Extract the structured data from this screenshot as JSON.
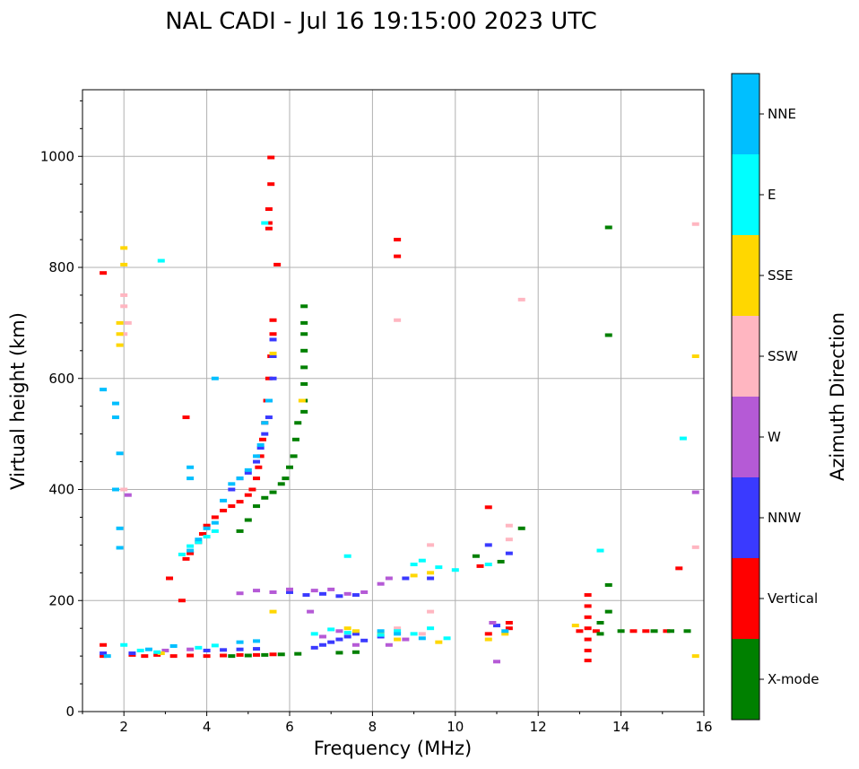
{
  "chart_data": {
    "type": "scatter",
    "title": "NAL CADI - Jul 16 19:15:00 2023 UTC",
    "xlabel": "Frequency (MHz)",
    "ylabel": "Virtual height (km)",
    "xlim": [
      1,
      16
    ],
    "ylim": [
      0,
      1120
    ],
    "xticks": [
      2,
      4,
      6,
      8,
      10,
      12,
      14,
      16
    ],
    "yticks": [
      0,
      200,
      400,
      600,
      800,
      1000
    ],
    "grid": true,
    "colorbar": {
      "label": "Azimuth Direction",
      "categories": [
        {
          "name": "X-mode",
          "color": "#008000"
        },
        {
          "name": "Vertical",
          "color": "#ff0000"
        },
        {
          "name": "NNW",
          "color": "#3a3aff"
        },
        {
          "name": "W",
          "color": "#b55ad6"
        },
        {
          "name": "SSW",
          "color": "#ffb6c1"
        },
        {
          "name": "SSE",
          "color": "#ffd700"
        },
        {
          "name": "E",
          "color": "#00ffff"
        },
        {
          "name": "NNE",
          "color": "#00bfff"
        }
      ]
    },
    "series": [
      {
        "name": "Vertical",
        "points": [
          [
            1.5,
            100
          ],
          [
            1.5,
            120
          ],
          [
            2.2,
            102
          ],
          [
            2.5,
            100
          ],
          [
            2.8,
            102
          ],
          [
            3.2,
            100
          ],
          [
            3.6,
            101
          ],
          [
            4.0,
            100
          ],
          [
            4.4,
            101
          ],
          [
            4.8,
            102
          ],
          [
            5.2,
            102
          ],
          [
            5.6,
            103
          ],
          [
            3.5,
            275
          ],
          [
            3.6,
            285
          ],
          [
            3.8,
            305
          ],
          [
            3.9,
            320
          ],
          [
            4.0,
            335
          ],
          [
            4.2,
            350
          ],
          [
            4.4,
            362
          ],
          [
            4.6,
            370
          ],
          [
            4.8,
            378
          ],
          [
            5.0,
            390
          ],
          [
            5.1,
            400
          ],
          [
            5.2,
            420
          ],
          [
            5.25,
            440
          ],
          [
            5.3,
            460
          ],
          [
            5.35,
            490
          ],
          [
            5.4,
            520
          ],
          [
            5.45,
            560
          ],
          [
            5.5,
            600
          ],
          [
            5.55,
            640
          ],
          [
            5.6,
            680
          ],
          [
            5.6,
            705
          ],
          [
            5.5,
            870
          ],
          [
            5.5,
            880
          ],
          [
            5.55,
            950
          ],
          [
            5.55,
            998
          ],
          [
            5.5,
            905
          ],
          [
            5.7,
            805
          ],
          [
            1.5,
            790
          ],
          [
            3.5,
            530
          ],
          [
            3.4,
            200
          ],
          [
            3.1,
            240
          ],
          [
            8.6,
            850
          ],
          [
            8.6,
            820
          ],
          [
            10.8,
            368
          ],
          [
            10.6,
            262
          ],
          [
            10.8,
            140
          ],
          [
            11.3,
            150
          ],
          [
            11.3,
            160
          ],
          [
            13.2,
            210
          ],
          [
            13.2,
            190
          ],
          [
            13.2,
            170
          ],
          [
            13.2,
            150
          ],
          [
            13.2,
            130
          ],
          [
            13.2,
            110
          ],
          [
            13.2,
            92
          ],
          [
            13.0,
            145
          ],
          [
            13.4,
            145
          ],
          [
            14.3,
            145
          ],
          [
            14.6,
            145
          ],
          [
            15.1,
            145
          ],
          [
            15.4,
            258
          ]
        ]
      },
      {
        "name": "X-mode",
        "points": [
          [
            4.6,
            100
          ],
          [
            5.0,
            101
          ],
          [
            5.4,
            102
          ],
          [
            5.8,
            103
          ],
          [
            6.2,
            104
          ],
          [
            7.2,
            106
          ],
          [
            7.6,
            107
          ],
          [
            4.8,
            325
          ],
          [
            5.0,
            345
          ],
          [
            5.2,
            370
          ],
          [
            5.4,
            385
          ],
          [
            5.6,
            395
          ],
          [
            5.8,
            410
          ],
          [
            5.9,
            420
          ],
          [
            6.0,
            440
          ],
          [
            6.1,
            460
          ],
          [
            6.15,
            490
          ],
          [
            6.2,
            520
          ],
          [
            6.35,
            540
          ],
          [
            6.35,
            560
          ],
          [
            6.35,
            590
          ],
          [
            6.35,
            620
          ],
          [
            6.35,
            650
          ],
          [
            6.35,
            680
          ],
          [
            6.35,
            700
          ],
          [
            6.35,
            730
          ],
          [
            10.5,
            280
          ],
          [
            11.1,
            270
          ],
          [
            11.6,
            330
          ],
          [
            13.5,
            160
          ],
          [
            13.5,
            140
          ],
          [
            13.7,
            228
          ],
          [
            13.7,
            180
          ],
          [
            13.7,
            678
          ],
          [
            13.7,
            872
          ],
          [
            14.0,
            145
          ],
          [
            14.8,
            145
          ],
          [
            15.2,
            145
          ],
          [
            15.6,
            145
          ]
        ]
      },
      {
        "name": "NNW",
        "points": [
          [
            1.5,
            105
          ],
          [
            2.2,
            105
          ],
          [
            4.0,
            110
          ],
          [
            4.4,
            111
          ],
          [
            4.8,
            112
          ],
          [
            5.2,
            113
          ],
          [
            4.6,
            400
          ],
          [
            4.8,
            420
          ],
          [
            5.0,
            430
          ],
          [
            5.2,
            450
          ],
          [
            5.3,
            475
          ],
          [
            5.4,
            500
          ],
          [
            5.5,
            530
          ],
          [
            5.5,
            560
          ],
          [
            5.6,
            600
          ],
          [
            5.6,
            640
          ],
          [
            5.6,
            670
          ],
          [
            6.0,
            215
          ],
          [
            6.4,
            210
          ],
          [
            6.8,
            212
          ],
          [
            7.2,
            208
          ],
          [
            7.6,
            210
          ],
          [
            6.6,
            115
          ],
          [
            6.8,
            120
          ],
          [
            7.0,
            125
          ],
          [
            7.2,
            130
          ],
          [
            7.4,
            135
          ],
          [
            7.6,
            140
          ],
          [
            7.8,
            128
          ],
          [
            8.2,
            135
          ],
          [
            8.8,
            240
          ],
          [
            9.4,
            240
          ],
          [
            10.8,
            300
          ],
          [
            11.0,
            155
          ],
          [
            11.3,
            285
          ]
        ]
      },
      {
        "name": "W",
        "points": [
          [
            3.0,
            110
          ],
          [
            3.6,
            112
          ],
          [
            4.8,
            213
          ],
          [
            5.2,
            218
          ],
          [
            5.6,
            215
          ],
          [
            6.0,
            220
          ],
          [
            6.6,
            218
          ],
          [
            7.0,
            220
          ],
          [
            7.4,
            212
          ],
          [
            7.8,
            215
          ],
          [
            8.2,
            230
          ],
          [
            8.4,
            240
          ],
          [
            6.5,
            180
          ],
          [
            6.8,
            135
          ],
          [
            7.2,
            145
          ],
          [
            7.6,
            120
          ],
          [
            8.4,
            120
          ],
          [
            8.8,
            130
          ],
          [
            10.9,
            160
          ],
          [
            11.0,
            90
          ],
          [
            15.8,
            395
          ],
          [
            2.1,
            390
          ]
        ]
      },
      {
        "name": "SSW",
        "points": [
          [
            2.0,
            750
          ],
          [
            2.0,
            730
          ],
          [
            2.1,
            700
          ],
          [
            2.0,
            680
          ],
          [
            8.6,
            705
          ],
          [
            9.4,
            300
          ],
          [
            11.3,
            335
          ],
          [
            11.3,
            310
          ],
          [
            11.6,
            742
          ],
          [
            15.8,
            878
          ],
          [
            15.8,
            296
          ],
          [
            2.0,
            400
          ],
          [
            8.6,
            150
          ],
          [
            9.4,
            180
          ],
          [
            9.2,
            140
          ]
        ]
      },
      {
        "name": "SSE",
        "points": [
          [
            1.9,
            700
          ],
          [
            1.9,
            680
          ],
          [
            1.9,
            660
          ],
          [
            2.0,
            835
          ],
          [
            2.0,
            805
          ],
          [
            5.6,
            645
          ],
          [
            6.3,
            560
          ],
          [
            5.6,
            180
          ],
          [
            7.4,
            150
          ],
          [
            7.6,
            145
          ],
          [
            8.2,
            140
          ],
          [
            8.6,
            130
          ],
          [
            9.0,
            245
          ],
          [
            9.4,
            250
          ],
          [
            9.6,
            125
          ],
          [
            10.8,
            130
          ],
          [
            11.2,
            140
          ],
          [
            12.9,
            155
          ],
          [
            15.8,
            640
          ],
          [
            15.8,
            100
          ],
          [
            2.9,
            105
          ]
        ]
      },
      {
        "name": "E",
        "points": [
          [
            2.4,
            110
          ],
          [
            2.8,
            107
          ],
          [
            3.8,
            115
          ],
          [
            4.2,
            119
          ],
          [
            6.6,
            140
          ],
          [
            7.0,
            148
          ],
          [
            7.4,
            142
          ],
          [
            8.2,
            138
          ],
          [
            8.6,
            145
          ],
          [
            9.0,
            140
          ],
          [
            9.4,
            150
          ],
          [
            9.8,
            132
          ],
          [
            3.4,
            283
          ],
          [
            3.6,
            298
          ],
          [
            3.8,
            305
          ],
          [
            4.0,
            315
          ],
          [
            4.2,
            325
          ],
          [
            9.0,
            265
          ],
          [
            9.2,
            272
          ],
          [
            9.6,
            260
          ],
          [
            10.0,
            255
          ],
          [
            10.8,
            265
          ],
          [
            13.5,
            290
          ],
          [
            15.5,
            492
          ],
          [
            5.4,
            880
          ],
          [
            2.9,
            812
          ],
          [
            7.4,
            280
          ],
          [
            2.0,
            120
          ]
        ]
      },
      {
        "name": "NNE",
        "points": [
          [
            1.5,
            580
          ],
          [
            1.8,
            555
          ],
          [
            1.8,
            530
          ],
          [
            1.9,
            465
          ],
          [
            1.8,
            400
          ],
          [
            1.9,
            330
          ],
          [
            1.9,
            295
          ],
          [
            3.6,
            440
          ],
          [
            3.6,
            420
          ],
          [
            4.2,
            600
          ],
          [
            3.6,
            290
          ],
          [
            3.8,
            310
          ],
          [
            4.0,
            330
          ],
          [
            4.2,
            340
          ],
          [
            4.4,
            380
          ],
          [
            4.6,
            410
          ],
          [
            4.8,
            420
          ],
          [
            5.0,
            435
          ],
          [
            5.2,
            460
          ],
          [
            5.3,
            480
          ],
          [
            5.4,
            520
          ],
          [
            5.5,
            560
          ],
          [
            1.6,
            100
          ],
          [
            2.6,
            112
          ],
          [
            3.2,
            118
          ],
          [
            4.8,
            125
          ],
          [
            5.2,
            127
          ],
          [
            8.2,
            145
          ],
          [
            8.6,
            140
          ],
          [
            9.2,
            132
          ],
          [
            11.2,
            145
          ]
        ]
      }
    ]
  }
}
